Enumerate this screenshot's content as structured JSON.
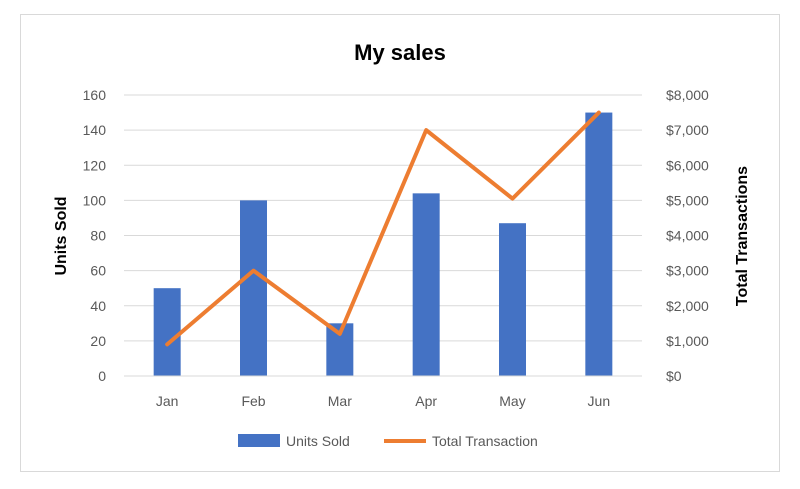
{
  "chart_data": {
    "type": "bar",
    "title": "My sales",
    "categories": [
      "Jan",
      "Feb",
      "Mar",
      "Apr",
      "May",
      "Jun"
    ],
    "series": [
      {
        "name": "Units Sold",
        "type": "bar",
        "axis": "left",
        "color": "#4472C4",
        "values": [
          50,
          100,
          30,
          104,
          87,
          150
        ]
      },
      {
        "name": "Total Transaction",
        "type": "line",
        "axis": "right",
        "color": "#ED7D31",
        "values": [
          900,
          3000,
          1200,
          7000,
          5050,
          7500
        ]
      }
    ],
    "ylabel": "Units Sold",
    "ylabel_right": "Total Transactions",
    "ylim": [
      0,
      160
    ],
    "ylim_right": [
      0,
      8000
    ],
    "yticks": [
      "0",
      "20",
      "40",
      "60",
      "80",
      "100",
      "120",
      "140",
      "160"
    ],
    "yticks_right": [
      "$0",
      "$1,000",
      "$2,000",
      "$3,000",
      "$4,000",
      "$5,000",
      "$6,000",
      "$7,000",
      "$8,000"
    ],
    "grid": true,
    "legend": "bottom"
  }
}
